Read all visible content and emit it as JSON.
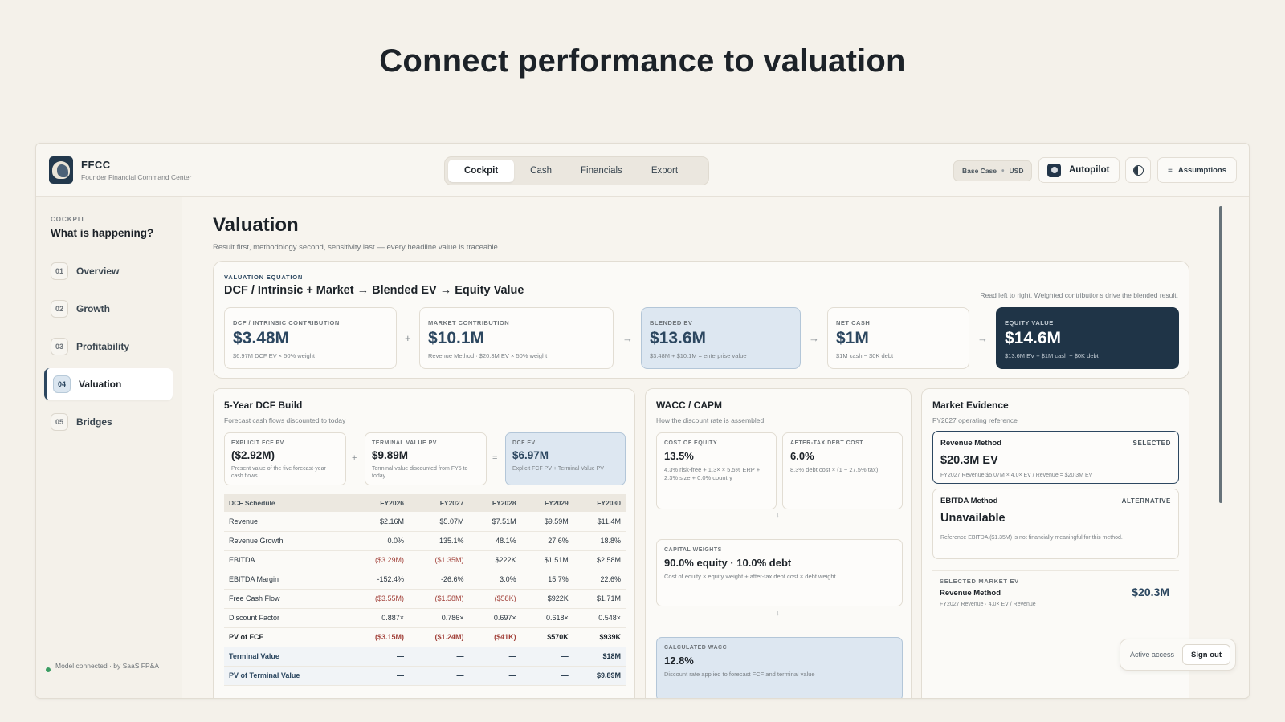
{
  "hero_title": "Connect performance to valuation",
  "brand": {
    "name": "FFCC",
    "subtitle": "Founder Financial Command Center"
  },
  "nav": {
    "tabs": [
      "Cockpit",
      "Cash",
      "Financials",
      "Export"
    ],
    "active": "Cockpit"
  },
  "header": {
    "scenario": "Base Case",
    "currency": "USD",
    "autopilot_label": "Autopilot",
    "assumptions_label": "Assumptions"
  },
  "sidebar": {
    "section": "COCKPIT",
    "title": "What is happening?",
    "items": [
      {
        "num": "01",
        "label": "Overview"
      },
      {
        "num": "02",
        "label": "Growth"
      },
      {
        "num": "03",
        "label": "Profitability"
      },
      {
        "num": "04",
        "label": "Valuation"
      },
      {
        "num": "05",
        "label": "Bridges"
      }
    ],
    "active_item": "Valuation",
    "footer": "Model connected · by SaaS FP&A"
  },
  "page": {
    "title": "Valuation",
    "subtitle": "Result first, methodology second, sensitivity last — every headline value is traceable."
  },
  "equation": {
    "eyebrow": "VALUATION EQUATION",
    "title": "DCF / Intrinsic + Market → Blended EV → Equity Value",
    "note": "Read left to right. Weighted contributions drive the blended result.",
    "boxes": [
      {
        "label": "DCF / INTRINSIC CONTRIBUTION",
        "value": "$3.48M",
        "foot": "$6.97M DCF EV × 50% weight"
      },
      {
        "label": "MARKET CONTRIBUTION",
        "value": "$10.1M",
        "foot": "Revenue Method · $20.3M EV × 50% weight"
      },
      {
        "label": "BLENDED EV",
        "value": "$13.6M",
        "foot": "$3.48M + $10.1M = enterprise value"
      },
      {
        "label": "NET CASH",
        "value": "$1M",
        "foot": "$1M cash − $0K debt"
      },
      {
        "label": "EQUITY VALUE",
        "value": "$14.6M",
        "foot": "$13.6M EV + $1M cash − $0K debt"
      }
    ],
    "operators": [
      "+",
      "→",
      "→",
      "→"
    ]
  },
  "dcf": {
    "title": "5-Year DCF Build",
    "subtitle": "Forecast cash flows discounted to today",
    "minis": [
      {
        "label": "EXPLICIT FCF PV",
        "value": "($2.92M)",
        "foot": "Present value of the five forecast-year cash flows"
      },
      {
        "label": "TERMINAL VALUE PV",
        "value": "$9.89M",
        "foot": "Terminal value discounted from FY5 to today"
      },
      {
        "label": "DCF EV",
        "value": "$6.97M",
        "foot": "Explicit FCF PV + Terminal Value PV"
      }
    ],
    "operators": [
      "+",
      "="
    ],
    "table": {
      "headers": [
        "DCF Schedule",
        "FY2026",
        "FY2027",
        "FY2028",
        "FY2029",
        "FY2030"
      ],
      "rows": [
        [
          "Revenue",
          "$2.16M",
          "$5.07M",
          "$7.51M",
          "$9.59M",
          "$11.4M"
        ],
        [
          "Revenue Growth",
          "0.0%",
          "135.1%",
          "48.1%",
          "27.6%",
          "18.8%"
        ],
        [
          "EBITDA",
          "($3.29M)",
          "($1.35M)",
          "$222K",
          "$1.51M",
          "$2.58M"
        ],
        [
          "EBITDA Margin",
          "-152.4%",
          "-26.6%",
          "3.0%",
          "15.7%",
          "22.6%"
        ],
        [
          "Free Cash Flow",
          "($3.55M)",
          "($1.58M)",
          "($58K)",
          "$922K",
          "$1.71M"
        ],
        [
          "Discount Factor",
          "0.887×",
          "0.786×",
          "0.697×",
          "0.618×",
          "0.548×"
        ],
        [
          "PV of FCF",
          "($3.15M)",
          "($1.24M)",
          "($41K)",
          "$570K",
          "$939K"
        ],
        [
          "Terminal Value",
          "—",
          "—",
          "—",
          "—",
          "$18M"
        ],
        [
          "PV of Terminal Value",
          "—",
          "—",
          "—",
          "—",
          "$9.89M"
        ]
      ]
    }
  },
  "wacc": {
    "title": "WACC / CAPM",
    "subtitle": "How the discount rate is assembled",
    "cost_of_equity": {
      "label": "COST OF EQUITY",
      "value": "13.5%",
      "foot": "4.3% risk-free + 1.3× × 5.5% ERP + 2.3% size + 0.0% country"
    },
    "debt_cost": {
      "label": "AFTER-TAX DEBT COST",
      "value": "6.0%",
      "foot": "8.3% debt cost × (1 − 27.5% tax)"
    },
    "weights": {
      "label": "CAPITAL WEIGHTS",
      "value": "90.0% equity · 10.0% debt",
      "foot": "Cost of equity × equity weight + after-tax debt cost × debt weight"
    },
    "calculated": {
      "label": "CALCULATED WACC",
      "value": "12.8%",
      "foot": "Discount rate applied to forecast FCF and terminal value"
    },
    "arrow": "↓"
  },
  "market": {
    "title": "Market Evidence",
    "subtitle": "FY2027 operating reference",
    "revenue": {
      "name": "Revenue Method",
      "tag": "SELECTED",
      "value": "$20.3M EV",
      "foot": "FY2027 Revenue $5.07M × 4.0× EV / Revenue = $20.3M EV"
    },
    "ebitda": {
      "name": "EBITDA Method",
      "tag": "ALTERNATIVE",
      "value": "Unavailable",
      "foot": "Reference EBITDA ($1.35M) is not financially meaningful for this method."
    },
    "selected": {
      "label": "SELECTED MARKET EV",
      "name": "Revenue Method",
      "foot": "FY2027 Revenue · 4.0× EV / Revenue",
      "value": "$20.3M"
    }
  },
  "session": {
    "status": "Active access",
    "sign_out": "Sign out"
  }
}
